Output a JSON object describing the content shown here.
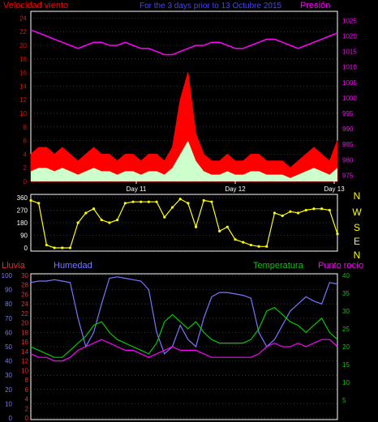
{
  "header": {
    "left": "Velocidad viento",
    "center": "For the 3 days prior to 13 Octubre 2015",
    "right": "Presión"
  },
  "colors": {
    "background": "#000000",
    "wind": "#ff0000",
    "gust_fill": "#ff0000",
    "avg_fill": "#ccffcc",
    "pressure": "#ff00ff",
    "direction": "#ffff00",
    "humidity": "#7777ff",
    "temperature": "#00cc00",
    "dewpoint": "#ff00ff",
    "rain": "#ff2222",
    "axis": "#ffffff",
    "grid": "#666666"
  },
  "chart_data": [
    {
      "type": "area",
      "name": "wind-pressure",
      "x_labels": [
        "Day 11",
        "Day 12",
        "Day 13"
      ],
      "left_axis": {
        "ticks": [
          0,
          2,
          4,
          6,
          8,
          10,
          12,
          14,
          16,
          18,
          20,
          22,
          24
        ],
        "ylim": [
          0,
          25
        ]
      },
      "right_axis": {
        "ticks": [
          975,
          980,
          985,
          990,
          995,
          1000,
          1005,
          1010,
          1015,
          1020,
          1025
        ],
        "ylim": [
          973,
          1028
        ]
      },
      "pressure": [
        1022,
        1021,
        1020,
        1019,
        1018,
        1017,
        1016,
        1017,
        1018,
        1018,
        1017,
        1017,
        1018,
        1017,
        1016,
        1016,
        1015,
        1014,
        1014,
        1015,
        1016,
        1017,
        1017,
        1018,
        1018,
        1017,
        1016,
        1016,
        1017,
        1018,
        1019,
        1019,
        1018,
        1017,
        1016,
        1017,
        1018,
        1019,
        1020,
        1021
      ],
      "gust": [
        4,
        5,
        5,
        4,
        5,
        4,
        3,
        4,
        5,
        4,
        4,
        3,
        4,
        4,
        3,
        4,
        4,
        3,
        5,
        12,
        16,
        7,
        4,
        3,
        3,
        4,
        3,
        3,
        4,
        4,
        3,
        3,
        3,
        2,
        3,
        4,
        5,
        4,
        3,
        6
      ],
      "average": [
        1.5,
        2,
        2,
        1.5,
        2,
        1.5,
        1,
        1.5,
        2,
        1.5,
        1.5,
        1,
        1.5,
        1.5,
        1,
        1.5,
        1.5,
        1,
        2,
        4,
        6,
        3,
        1.5,
        1,
        1,
        1.5,
        1,
        1,
        1.5,
        1.5,
        1,
        1,
        1,
        0.5,
        1,
        1.5,
        2,
        1.5,
        1,
        2
      ]
    },
    {
      "type": "scatter",
      "name": "wind-direction",
      "left_axis": {
        "ticks": [
          0,
          90,
          180,
          270,
          360
        ],
        "ylim": [
          0,
          360
        ]
      },
      "right_labels": [
        "N",
        "W",
        "S",
        "E",
        "N"
      ],
      "values": [
        340,
        320,
        20,
        0,
        0,
        0,
        180,
        250,
        280,
        200,
        180,
        200,
        320,
        330,
        330,
        330,
        330,
        220,
        290,
        350,
        320,
        150,
        340,
        330,
        120,
        150,
        60,
        40,
        20,
        10,
        10,
        250,
        230,
        260,
        250,
        270,
        280,
        280,
        270,
        100
      ]
    },
    {
      "type": "line",
      "name": "humidity-temperature",
      "labels": {
        "rain": "Lluvia",
        "humidity": "Humedad",
        "temperature": "Temperatura",
        "dewpoint": "Punto rocío"
      },
      "humidity_axis": {
        "ticks": [
          100,
          90,
          80,
          70,
          60,
          50,
          40,
          30,
          20,
          10,
          0
        ],
        "ylim": [
          0,
          100
        ]
      },
      "rain_axis": {
        "ticks": [
          30,
          28,
          26,
          24,
          22,
          20,
          18,
          16,
          14,
          12,
          10,
          8,
          6,
          4,
          2,
          0
        ],
        "ylim": [
          0,
          30
        ]
      },
      "temp_axis": {
        "ticks": [
          40,
          35,
          30,
          25,
          20,
          15,
          10,
          5
        ],
        "ylim": [
          0,
          40
        ]
      },
      "humidity": [
        95,
        96,
        96,
        97,
        96,
        95,
        70,
        50,
        60,
        80,
        98,
        99,
        98,
        97,
        96,
        90,
        60,
        45,
        50,
        65,
        55,
        50,
        70,
        85,
        88,
        88,
        87,
        86,
        84,
        60,
        50,
        55,
        65,
        75,
        80,
        85,
        82,
        80,
        95,
        94
      ],
      "temperature": [
        20,
        19,
        18,
        17,
        17,
        19,
        21,
        23,
        26,
        27,
        24,
        22,
        21,
        20,
        19,
        18,
        21,
        27,
        29,
        27,
        25,
        27,
        24,
        22,
        21,
        21,
        21,
        21,
        22,
        25,
        30,
        31,
        29,
        27,
        26,
        24,
        26,
        28,
        24,
        22
      ],
      "dewpoint": [
        18,
        17,
        17,
        16,
        16,
        17,
        19,
        20,
        21,
        22,
        21,
        20,
        19,
        19,
        18,
        17,
        18,
        19,
        20,
        19,
        19,
        19,
        18,
        17,
        17,
        17,
        17,
        17,
        17,
        18,
        20,
        21,
        20,
        20,
        21,
        20,
        21,
        22,
        22,
        20
      ]
    }
  ]
}
